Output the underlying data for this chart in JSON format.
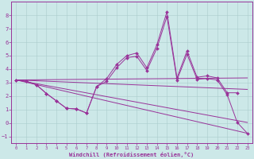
{
  "xlabel": "Windchill (Refroidissement éolien,°C)",
  "background_color": "#cce8e8",
  "grid_color": "#aacccc",
  "line_color": "#993399",
  "xlim": [
    -0.5,
    23.5
  ],
  "ylim": [
    -1.5,
    9.0
  ],
  "yticks": [
    -1,
    0,
    1,
    2,
    3,
    4,
    5,
    6,
    7,
    8
  ],
  "xticks": [
    0,
    1,
    2,
    3,
    4,
    5,
    6,
    7,
    8,
    9,
    10,
    11,
    12,
    13,
    14,
    15,
    16,
    17,
    18,
    19,
    20,
    21,
    22,
    23
  ],
  "lines": [
    {
      "x": [
        0,
        1,
        2,
        3,
        4,
        5,
        6,
        7,
        8,
        9,
        10,
        11,
        12,
        13,
        14,
        15,
        16,
        17,
        18,
        19,
        20,
        21,
        22
      ],
      "y": [
        3.2,
        3.1,
        2.85,
        2.2,
        1.65,
        1.1,
        1.05,
        0.75,
        2.7,
        3.3,
        4.35,
        5.0,
        5.2,
        4.1,
        5.8,
        8.25,
        3.35,
        5.35,
        3.4,
        3.5,
        3.35,
        2.25,
        2.25
      ],
      "markers": true
    },
    {
      "x": [
        0,
        1,
        2,
        3,
        4,
        5,
        6,
        7,
        8,
        9,
        10,
        11,
        12,
        13,
        14,
        15,
        16,
        17,
        18,
        19,
        20,
        21,
        22,
        23
      ],
      "y": [
        3.2,
        3.1,
        2.85,
        2.2,
        1.65,
        1.1,
        1.05,
        0.75,
        2.7,
        3.1,
        4.1,
        4.85,
        4.95,
        3.9,
        5.55,
        7.9,
        3.2,
        5.1,
        3.25,
        3.3,
        3.2,
        2.1,
        0.05,
        -0.75
      ],
      "markers": true
    },
    {
      "x": [
        0,
        23
      ],
      "y": [
        3.2,
        3.35
      ],
      "markers": false
    },
    {
      "x": [
        0,
        23
      ],
      "y": [
        3.2,
        2.5
      ],
      "markers": false
    },
    {
      "x": [
        0,
        23
      ],
      "y": [
        3.2,
        0.05
      ],
      "markers": false
    },
    {
      "x": [
        0,
        23
      ],
      "y": [
        3.2,
        -0.75
      ],
      "markers": false
    }
  ]
}
